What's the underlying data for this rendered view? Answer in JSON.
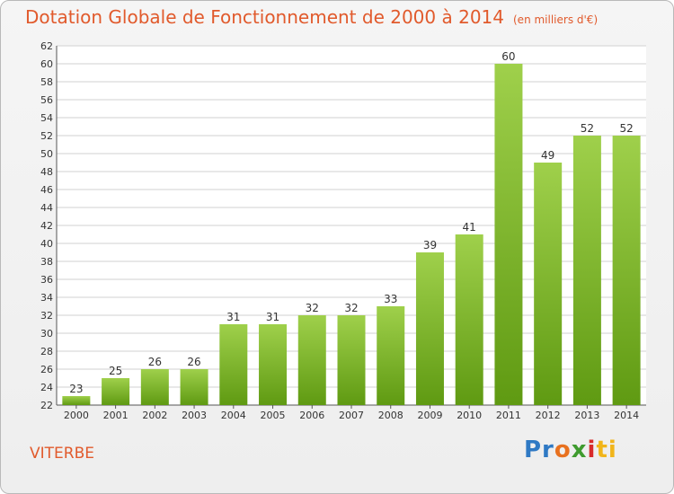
{
  "header": {
    "title": "Dotation Globale de Fonctionnement de 2000 à 2014",
    "unit": "(en milliers d'€)"
  },
  "footer": {
    "commune": "VITERBE",
    "logo_text": [
      "Pr",
      "o",
      "x",
      "i",
      "ti"
    ]
  },
  "colors": {
    "title": "#e15a2c",
    "bar_light": "#9fd04b",
    "bar_dark": "#5f9a12",
    "grid": "#d2d2d2"
  },
  "chart_data": {
    "type": "bar",
    "title": "Dotation Globale de Fonctionnement de 2000 à 2014",
    "subtitle": "(en milliers d'€)",
    "xlabel": "",
    "ylabel": "",
    "ylim": [
      22,
      62
    ],
    "ytick_step": 2,
    "grid": true,
    "categories": [
      "2000",
      "2001",
      "2002",
      "2003",
      "2004",
      "2005",
      "2006",
      "2007",
      "2008",
      "2009",
      "2010",
      "2011",
      "2012",
      "2013",
      "2014"
    ],
    "values": [
      23,
      25,
      26,
      26,
      31,
      31,
      32,
      32,
      33,
      39,
      41,
      60,
      49,
      52,
      52
    ]
  }
}
